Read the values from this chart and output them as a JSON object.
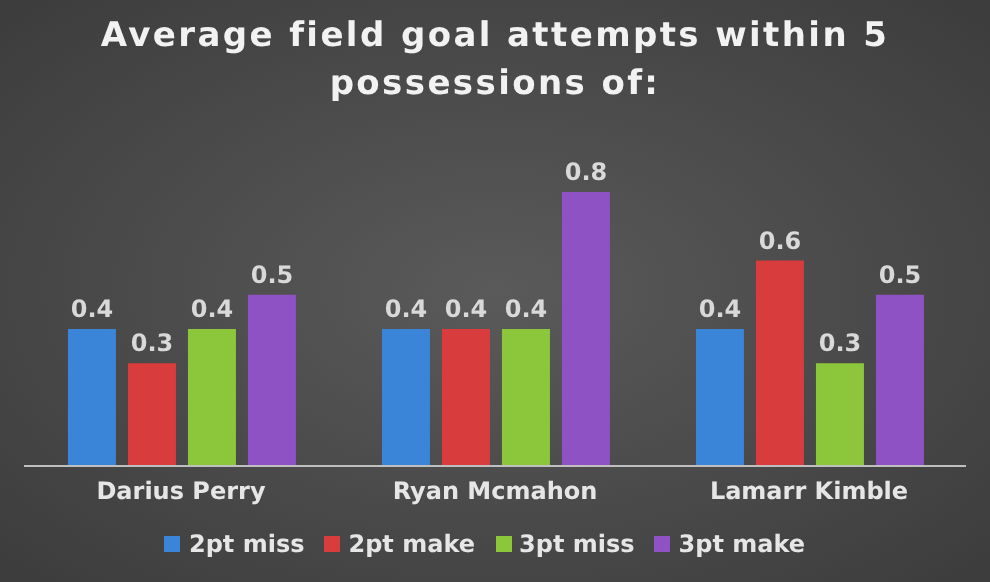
{
  "chart_data": {
    "type": "bar",
    "title": "Average field goal attempts within 5 possessions of:",
    "categories": [
      "Darius Perry",
      "Ryan Mcmahon",
      "Lamarr Kimble"
    ],
    "series": [
      {
        "name": "2pt miss",
        "color": "#3a85d8",
        "values": [
          0.4,
          0.4,
          0.4
        ]
      },
      {
        "name": "2pt make",
        "color": "#d83c3c",
        "values": [
          0.3,
          0.4,
          0.6
        ]
      },
      {
        "name": "3pt miss",
        "color": "#8cc63a",
        "values": [
          0.4,
          0.4,
          0.3
        ]
      },
      {
        "name": "3pt make",
        "color": "#8e52c4",
        "values": [
          0.5,
          0.8,
          0.5
        ]
      }
    ],
    "data_labels": true,
    "legend": "bottom",
    "grid": false
  }
}
